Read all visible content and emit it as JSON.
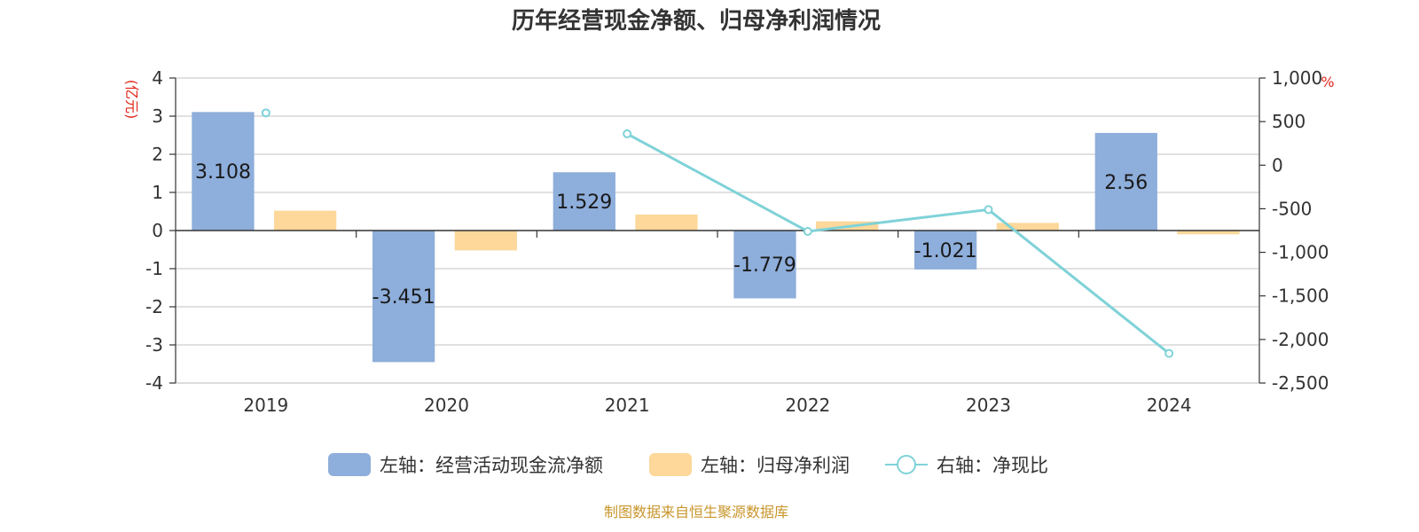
{
  "chart_data": {
    "type": "bar",
    "title": "历年经营现金净额、归母净利润情况",
    "left_unit": "(亿元)",
    "right_unit": "%",
    "categories": [
      "2019",
      "2020",
      "2021",
      "2022",
      "2023",
      "2024"
    ],
    "left_axis": {
      "ylim": [
        -4,
        4
      ],
      "ticks": [
        "4",
        "3",
        "2",
        "1",
        "0",
        "-1",
        "-2",
        "-3",
        "-4"
      ],
      "tick_values": [
        4,
        3,
        2,
        1,
        0,
        -1,
        -2,
        -3,
        -4
      ]
    },
    "right_axis": {
      "ylim": [
        -2500,
        1000
      ],
      "ticks": [
        "1,000",
        "500",
        "0",
        "-500",
        "-1,000",
        "-1,500",
        "-2,000",
        "-2,500"
      ],
      "tick_values": [
        1000,
        500,
        0,
        -500,
        -1000,
        -1500,
        -2000,
        -2500
      ]
    },
    "series": [
      {
        "name": "左轴：经营活动现金流净额",
        "kind": "bar",
        "axis": "left",
        "color": "#8eaedb",
        "values": [
          3.108,
          -3.451,
          1.529,
          -1.779,
          -1.021,
          2.56
        ],
        "labels": [
          "3.108",
          "-3.451",
          "1.529",
          "-1.779",
          "-1.021",
          "2.56"
        ]
      },
      {
        "name": "左轴：归母净利润",
        "kind": "bar",
        "axis": "left",
        "color": "#fdd89a",
        "values": [
          0.52,
          -0.52,
          0.42,
          0.24,
          0.2,
          -0.1
        ]
      },
      {
        "name": "右轴：净现比",
        "kind": "line",
        "axis": "right",
        "color": "#7fd2d8",
        "values": [
          600,
          null,
          360,
          -760,
          -510,
          -2160
        ]
      }
    ],
    "grid": true,
    "legend_position": "bottom"
  },
  "footer": {
    "source": "制图数据来自恒生聚源数据库"
  }
}
